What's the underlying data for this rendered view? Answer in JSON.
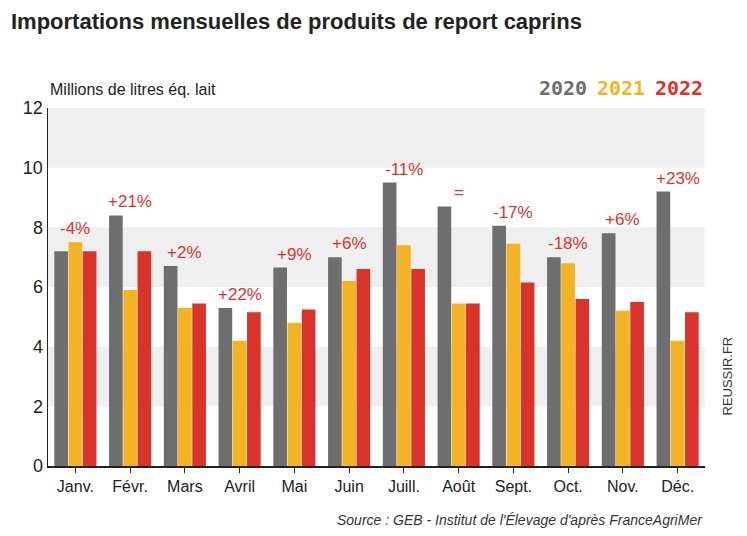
{
  "chart_data": {
    "type": "bar",
    "title": "Importations mensuelles de produits de report caprins",
    "y_label": "Millions de litres éq. lait",
    "source": "Source : GEB - Institut de l'Élevage d'après FranceAgriMer",
    "watermark": "REUSSIR.FR",
    "categories": [
      "Janv.",
      "Févr.",
      "Mars",
      "Avril",
      "Mai",
      "Juin",
      "Juill.",
      "Août",
      "Sept.",
      "Oct.",
      "Nov.",
      "Déc."
    ],
    "series": [
      {
        "name": "2020",
        "color": "#6e6e6e",
        "values": [
          7.2,
          8.4,
          6.7,
          5.3,
          6.65,
          7.0,
          9.5,
          8.7,
          8.05,
          7.0,
          7.8,
          9.2
        ]
      },
      {
        "name": "2021",
        "color": "#f4b324",
        "values": [
          7.5,
          5.9,
          5.3,
          4.2,
          4.8,
          6.2,
          7.4,
          5.45,
          7.45,
          6.8,
          5.2,
          4.2
        ]
      },
      {
        "name": "2022",
        "color": "#d8342c",
        "values": [
          7.2,
          7.2,
          5.45,
          5.15,
          5.25,
          6.6,
          6.6,
          5.45,
          6.15,
          5.6,
          5.5,
          5.15
        ]
      }
    ],
    "annotations": [
      {
        "category": "Janv.",
        "text": "-4%"
      },
      {
        "category": "Févr.",
        "text": "+21%"
      },
      {
        "category": "Mars",
        "text": "+2%"
      },
      {
        "category": "Avril",
        "text": "+22%"
      },
      {
        "category": "Mai",
        "text": "+9%"
      },
      {
        "category": "Juin",
        "text": "+6%"
      },
      {
        "category": "Juill.",
        "text": "-11%"
      },
      {
        "category": "Août",
        "text": "="
      },
      {
        "category": "Sept.",
        "text": "-17%"
      },
      {
        "category": "Oct.",
        "text": "-18%"
      },
      {
        "category": "Nov.",
        "text": "+6%"
      },
      {
        "category": "Déc.",
        "text": "+23%"
      }
    ],
    "annotation_color": "#d8342c",
    "ylim": [
      0,
      12
    ],
    "yticks": [
      0,
      2,
      4,
      6,
      8,
      10,
      12
    ],
    "grid": true,
    "legend": "top right"
  }
}
